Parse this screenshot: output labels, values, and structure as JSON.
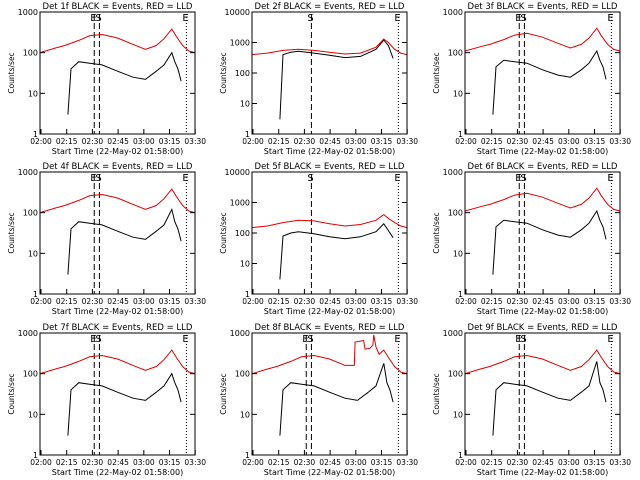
{
  "figure": {
    "colors": {
      "events": "#000000",
      "lld": "#e00000",
      "axes": "#000000"
    }
  },
  "chart_data": [
    {
      "type": "line",
      "title": "Det 1f BLACK = Events, RED = LLD",
      "xlabel": "Start Time (22-May-02 01:58:00)",
      "ylabel": "Counts/sec",
      "xticks": [
        "02:00",
        "02:15",
        "02:30",
        "02:45",
        "03:00",
        "03:15",
        "03:30"
      ],
      "xlim_minutes": [
        120,
        220
      ],
      "yscale": "log",
      "ylim": [
        1,
        1000
      ],
      "yticks": [
        "1",
        "10",
        "100",
        "1000"
      ],
      "markers": [
        "E",
        "S",
        "E"
      ],
      "series": [
        {
          "name": "LLD",
          "x": [
            120,
            130,
            136,
            145,
            152,
            160,
            170,
            180,
            188,
            195,
            200,
            205,
            208,
            212,
            216,
            220
          ],
          "values": [
            100,
            130,
            150,
            200,
            260,
            280,
            230,
            160,
            120,
            150,
            220,
            380,
            250,
            150,
            110,
            100
          ]
        },
        {
          "name": "Events",
          "x": [
            138,
            140,
            145,
            152,
            160,
            170,
            180,
            188,
            195,
            200,
            205,
            207,
            209,
            211
          ],
          "values": [
            3,
            40,
            60,
            55,
            50,
            35,
            25,
            22,
            35,
            50,
            100,
            60,
            40,
            20
          ]
        }
      ]
    },
    {
      "type": "line",
      "title": "Det 2f BLACK = Events, RED = LLD",
      "xlabel": "Start Time (22-May-02 01:58:00)",
      "ylabel": "Counts/sec",
      "xticks": [
        "02:00",
        "02:15",
        "02:30",
        "02:45",
        "03:00",
        "03:15",
        "03:30"
      ],
      "xlim_minutes": [
        120,
        220
      ],
      "yscale": "log",
      "ylim": [
        1,
        10000
      ],
      "yticks": [
        "1",
        "10",
        "100",
        "1000",
        "10000"
      ],
      "markers": [
        "S",
        "E"
      ],
      "series": [
        {
          "name": "LLD",
          "x": [
            120,
            130,
            140,
            150,
            160,
            170,
            180,
            190,
            200,
            205,
            208,
            212,
            216,
            220
          ],
          "values": [
            400,
            450,
            550,
            600,
            550,
            480,
            420,
            450,
            700,
            1300,
            1000,
            600,
            450,
            400
          ]
        },
        {
          "name": "Events",
          "x": [
            138,
            140,
            145,
            150,
            160,
            170,
            180,
            190,
            200,
            205,
            208,
            211
          ],
          "values": [
            3,
            400,
            480,
            520,
            450,
            380,
            320,
            350,
            600,
            1200,
            800,
            300
          ]
        }
      ]
    },
    {
      "type": "line",
      "title": "Det 3f BLACK = Events, RED = LLD",
      "xlabel": "Start Time (22-May-02 01:58:00)",
      "ylabel": "Counts/sec",
      "xticks": [
        "02:00",
        "02:15",
        "02:30",
        "02:45",
        "03:00",
        "03:15",
        "03:30"
      ],
      "xlim_minutes": [
        120,
        220
      ],
      "yscale": "log",
      "ylim": [
        1,
        1000
      ],
      "yticks": [
        "1",
        "10",
        "100",
        "1000"
      ],
      "markers": [
        "E",
        "S",
        "E"
      ],
      "series": [
        {
          "name": "LLD",
          "x": [
            120,
            130,
            136,
            145,
            152,
            160,
            170,
            180,
            188,
            195,
            200,
            205,
            208,
            212,
            216,
            220
          ],
          "values": [
            110,
            140,
            160,
            210,
            270,
            300,
            240,
            170,
            130,
            160,
            230,
            400,
            260,
            160,
            120,
            110
          ]
        },
        {
          "name": "Events",
          "x": [
            138,
            140,
            145,
            152,
            160,
            170,
            180,
            188,
            195,
            200,
            205,
            207,
            209,
            211
          ],
          "values": [
            3,
            45,
            65,
            60,
            55,
            38,
            28,
            25,
            38,
            55,
            110,
            65,
            45,
            22
          ]
        }
      ]
    },
    {
      "type": "line",
      "title": "Det 4f BLACK = Events, RED = LLD",
      "xlabel": "Start Time (22-May-02 01:58:00)",
      "ylabel": "Counts/sec",
      "xticks": [
        "02:00",
        "02:15",
        "02:30",
        "02:45",
        "03:00",
        "03:15",
        "03:30"
      ],
      "xlim_minutes": [
        120,
        220
      ],
      "yscale": "log",
      "ylim": [
        1,
        1000
      ],
      "yticks": [
        "1",
        "10",
        "100",
        "1000"
      ],
      "markers": [
        "E",
        "S",
        "E"
      ],
      "series": [
        {
          "name": "LLD",
          "x": [
            120,
            130,
            136,
            145,
            152,
            160,
            170,
            180,
            188,
            195,
            200,
            205,
            208,
            212,
            216,
            220
          ],
          "values": [
            100,
            130,
            150,
            200,
            260,
            280,
            230,
            160,
            120,
            150,
            220,
            380,
            250,
            150,
            110,
            100
          ]
        },
        {
          "name": "Events",
          "x": [
            138,
            140,
            145,
            152,
            160,
            170,
            180,
            188,
            195,
            200,
            205,
            207,
            209,
            211
          ],
          "values": [
            3,
            40,
            60,
            55,
            50,
            35,
            25,
            22,
            35,
            50,
            120,
            60,
            40,
            20
          ]
        }
      ]
    },
    {
      "type": "line",
      "title": "Det 5f BLACK = Events, RED = LLD",
      "xlabel": "Start Time (22-May-02 01:58:00)",
      "ylabel": "Counts/sec",
      "xticks": [
        "02:00",
        "02:15",
        "02:30",
        "02:45",
        "03:00",
        "03:15",
        "03:30"
      ],
      "xlim_minutes": [
        120,
        220
      ],
      "yscale": "log",
      "ylim": [
        1,
        10000
      ],
      "yticks": [
        "1",
        "10",
        "100",
        "1000",
        "10000"
      ],
      "markers": [
        "S",
        "E"
      ],
      "series": [
        {
          "name": "LLD",
          "x": [
            120,
            130,
            140,
            150,
            160,
            170,
            180,
            190,
            200,
            205,
            208,
            212,
            216,
            220
          ],
          "values": [
            150,
            170,
            220,
            260,
            250,
            200,
            170,
            190,
            260,
            400,
            300,
            220,
            170,
            150
          ]
        },
        {
          "name": "Events",
          "x": [
            138,
            140,
            145,
            150,
            160,
            170,
            180,
            190,
            200,
            205,
            208,
            211
          ],
          "values": [
            3,
            80,
            100,
            110,
            95,
            75,
            65,
            75,
            110,
            200,
            120,
            70
          ]
        }
      ]
    },
    {
      "type": "line",
      "title": "Det 6f BLACK = Events, RED = LLD",
      "xlabel": "Start Time (22-May-02 01:58:00)",
      "ylabel": "Counts/sec",
      "xticks": [
        "02:00",
        "02:15",
        "02:30",
        "02:45",
        "03:00",
        "03:15",
        "03:30"
      ],
      "xlim_minutes": [
        120,
        220
      ],
      "yscale": "log",
      "ylim": [
        1,
        1000
      ],
      "yticks": [
        "1",
        "10",
        "100",
        "1000"
      ],
      "markers": [
        "E",
        "S",
        "E"
      ],
      "series": [
        {
          "name": "LLD",
          "x": [
            120,
            130,
            136,
            145,
            152,
            160,
            170,
            180,
            188,
            195,
            200,
            205,
            208,
            212,
            216,
            220
          ],
          "values": [
            110,
            140,
            160,
            210,
            270,
            300,
            240,
            170,
            130,
            160,
            230,
            400,
            260,
            160,
            120,
            110
          ]
        },
        {
          "name": "Events",
          "x": [
            138,
            140,
            145,
            152,
            160,
            170,
            180,
            188,
            195,
            200,
            205,
            207,
            209,
            211
          ],
          "values": [
            3,
            45,
            65,
            60,
            55,
            38,
            28,
            25,
            38,
            55,
            110,
            65,
            45,
            22
          ]
        }
      ]
    },
    {
      "type": "line",
      "title": "Det 7f BLACK = Events, RED = LLD",
      "xlabel": "Start Time (22-May-02 01:58:00)",
      "ylabel": "Counts/sec",
      "xticks": [
        "02:00",
        "02:15",
        "02:30",
        "02:45",
        "03:00",
        "03:15",
        "03:30"
      ],
      "xlim_minutes": [
        120,
        220
      ],
      "yscale": "log",
      "ylim": [
        1,
        1000
      ],
      "yticks": [
        "1",
        "10",
        "100",
        "1000"
      ],
      "markers": [
        "E",
        "S",
        "E"
      ],
      "series": [
        {
          "name": "LLD",
          "x": [
            120,
            130,
            136,
            145,
            152,
            160,
            170,
            180,
            188,
            195,
            200,
            205,
            208,
            212,
            216,
            220
          ],
          "values": [
            100,
            130,
            150,
            200,
            260,
            280,
            230,
            160,
            120,
            150,
            220,
            380,
            250,
            150,
            110,
            100
          ]
        },
        {
          "name": "Events",
          "x": [
            138,
            140,
            145,
            152,
            160,
            170,
            180,
            188,
            195,
            200,
            205,
            207,
            209,
            211
          ],
          "values": [
            3,
            40,
            60,
            55,
            50,
            35,
            25,
            22,
            35,
            50,
            100,
            60,
            40,
            20
          ]
        }
      ]
    },
    {
      "type": "line",
      "title": "Det 8f BLACK = Events, RED = LLD",
      "xlabel": "Start Time (22-May-02 01:58:00)",
      "ylabel": "Counts/sec",
      "xticks": [
        "02:00",
        "02:15",
        "02:30",
        "02:45",
        "03:00",
        "03:15",
        "03:30"
      ],
      "xlim_minutes": [
        120,
        220
      ],
      "yscale": "log",
      "ylim": [
        1,
        1000
      ],
      "yticks": [
        "1",
        "10",
        "100",
        "1000"
      ],
      "markers": [
        "E",
        "S",
        "E"
      ],
      "series": [
        {
          "name": "LLD",
          "x": [
            120,
            130,
            136,
            145,
            152,
            160,
            170,
            180,
            186,
            186.5,
            192,
            193,
            196,
            198,
            198.5,
            200,
            202,
            205,
            208,
            212,
            216,
            220
          ],
          "values": [
            100,
            130,
            150,
            200,
            260,
            280,
            230,
            160,
            160,
            600,
            650,
            400,
            420,
            500,
            900,
            450,
            300,
            380,
            250,
            150,
            110,
            100
          ]
        },
        {
          "name": "Events",
          "x": [
            138,
            140,
            145,
            152,
            160,
            170,
            180,
            188,
            195,
            200,
            205,
            207,
            209,
            211
          ],
          "values": [
            3,
            40,
            60,
            55,
            50,
            35,
            25,
            22,
            35,
            50,
            180,
            60,
            40,
            20
          ]
        }
      ]
    },
    {
      "type": "line",
      "title": "Det 9f BLACK = Events, RED = LLD",
      "xlabel": "Start Time (22-May-02 01:58:00)",
      "ylabel": "Counts/sec",
      "xticks": [
        "02:00",
        "02:15",
        "02:30",
        "02:45",
        "03:00",
        "03:15",
        "03:30"
      ],
      "xlim_minutes": [
        120,
        220
      ],
      "yscale": "log",
      "ylim": [
        1,
        1000
      ],
      "yticks": [
        "1",
        "10",
        "100",
        "1000"
      ],
      "markers": [
        "E",
        "S",
        "E"
      ],
      "series": [
        {
          "name": "LLD",
          "x": [
            120,
            130,
            136,
            145,
            152,
            160,
            170,
            180,
            188,
            195,
            200,
            205,
            208,
            212,
            216,
            220
          ],
          "values": [
            100,
            130,
            150,
            200,
            260,
            280,
            230,
            160,
            120,
            150,
            220,
            380,
            250,
            150,
            110,
            100
          ]
        },
        {
          "name": "Events",
          "x": [
            138,
            140,
            145,
            152,
            160,
            170,
            180,
            188,
            195,
            200,
            205,
            207,
            209,
            211
          ],
          "values": [
            3,
            40,
            60,
            55,
            50,
            35,
            25,
            22,
            35,
            50,
            200,
            60,
            40,
            20
          ]
        }
      ]
    }
  ]
}
